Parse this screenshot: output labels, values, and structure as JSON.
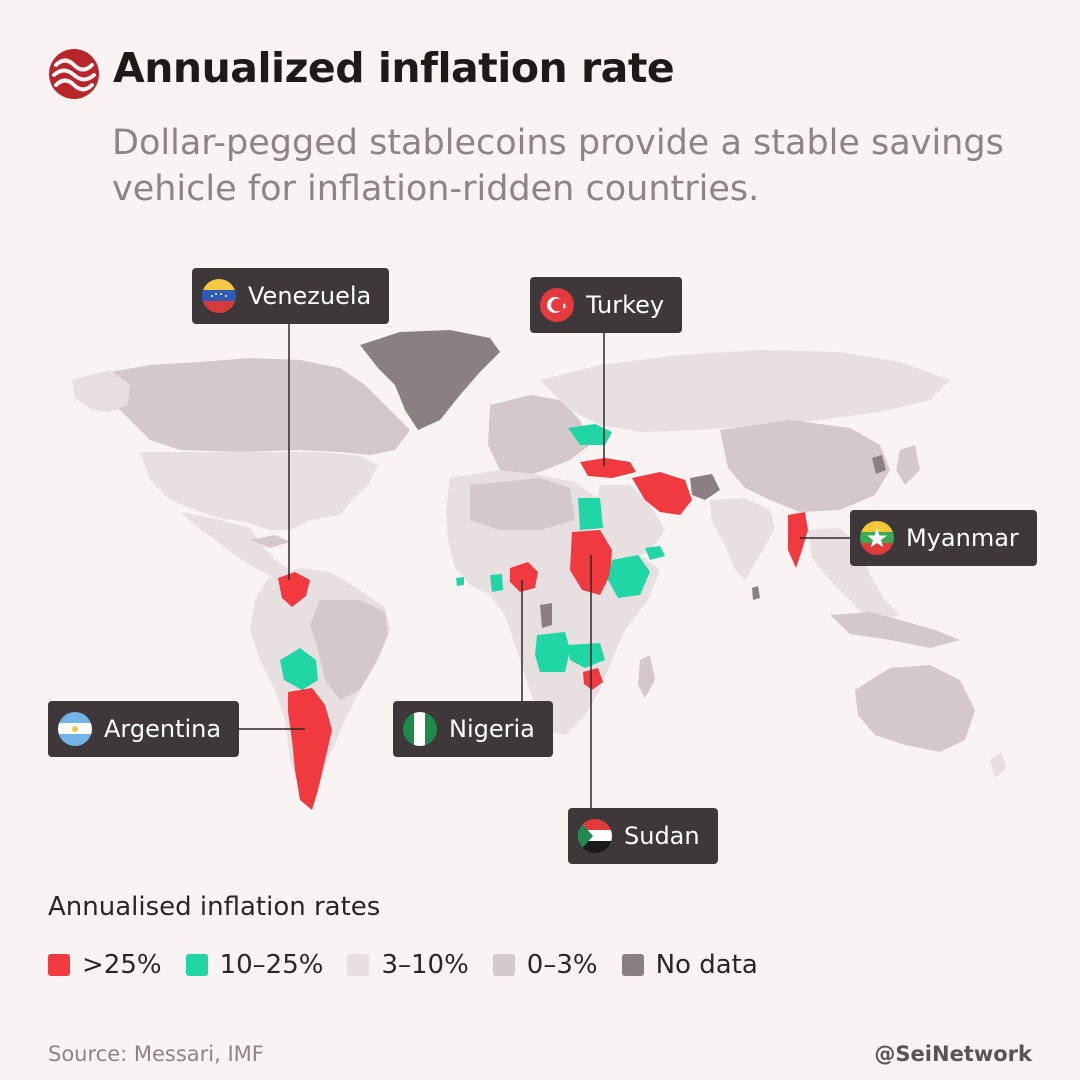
{
  "header": {
    "title": "Annualized inflation rate",
    "subtitle": "Dollar-pegged stablecoins provide a stable savings vehicle for inflation-ridden countries."
  },
  "logo": {
    "icon": "sei-wave-logo-icon",
    "color": "#b8262b"
  },
  "callouts": [
    {
      "country": "Venezuela",
      "flag_icon": "venezuela-flag-icon",
      "category": ">25%"
    },
    {
      "country": "Turkey",
      "flag_icon": "turkey-flag-icon",
      "category": ">25%"
    },
    {
      "country": "Myanmar",
      "flag_icon": "myanmar-flag-icon",
      "category": ">25%"
    },
    {
      "country": "Argentina",
      "flag_icon": "argentina-flag-icon",
      "category": ">25%"
    },
    {
      "country": "Nigeria",
      "flag_icon": "nigeria-flag-icon",
      "category": ">25%"
    },
    {
      "country": "Sudan",
      "flag_icon": "sudan-flag-icon",
      "category": ">25%"
    }
  ],
  "legend": {
    "title": "Annualised inflation rates",
    "items": [
      {
        "label": ">25%",
        "color": "#f03a3f"
      },
      {
        "label": "10–25%",
        "color": "#1fd6a4"
      },
      {
        "label": "3–10%",
        "color": "#e7dfe0"
      },
      {
        "label": "0–3%",
        "color": "#d5c8cb"
      },
      {
        "label": "No data",
        "color": "#8a7f82"
      }
    ]
  },
  "footer": {
    "source": "Source: Messari, IMF",
    "handle": "@SeiNetwork"
  }
}
